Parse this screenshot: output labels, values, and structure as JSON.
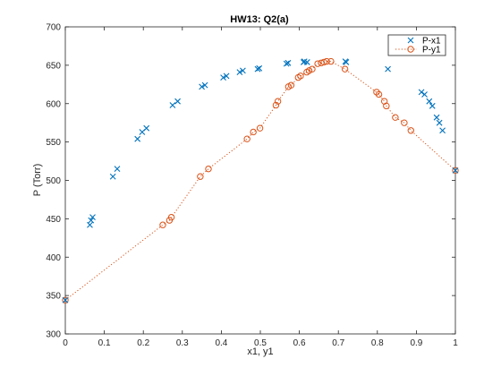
{
  "chart_data": {
    "type": "scatter",
    "title": "HW13: Q2(a)",
    "xlabel": "x1, y1",
    "ylabel": "P (Torr)",
    "xlim": [
      0,
      1
    ],
    "ylim": [
      300,
      700
    ],
    "xticks": [
      0,
      0.1,
      0.2,
      0.3,
      0.4,
      0.5,
      0.6,
      0.7,
      0.8,
      0.9,
      1
    ],
    "yticks": [
      300,
      350,
      400,
      450,
      500,
      550,
      600,
      650,
      700
    ],
    "legend_position": "top-right",
    "colors": {
      "x_series": "#0072BD",
      "y_series": "#D95319",
      "axis": "#262626"
    },
    "series": [
      {
        "name": "P-x1",
        "marker": "x",
        "line": "none",
        "points": [
          [
            0.0,
            344
          ],
          [
            0.063,
            442
          ],
          [
            0.066,
            448
          ],
          [
            0.07,
            452
          ],
          [
            0.122,
            505
          ],
          [
            0.133,
            515
          ],
          [
            0.185,
            554
          ],
          [
            0.197,
            563
          ],
          [
            0.208,
            568
          ],
          [
            0.275,
            598
          ],
          [
            0.288,
            603
          ],
          [
            0.35,
            622
          ],
          [
            0.358,
            624
          ],
          [
            0.405,
            634
          ],
          [
            0.413,
            636
          ],
          [
            0.447,
            641
          ],
          [
            0.455,
            643
          ],
          [
            0.493,
            645
          ],
          [
            0.497,
            646
          ],
          [
            0.567,
            652
          ],
          [
            0.571,
            653
          ],
          [
            0.611,
            654
          ],
          [
            0.613,
            655
          ],
          [
            0.62,
            654
          ],
          [
            0.718,
            655
          ],
          [
            0.72,
            654
          ],
          [
            0.827,
            645
          ],
          [
            0.913,
            615
          ],
          [
            0.921,
            612
          ],
          [
            0.933,
            603
          ],
          [
            0.941,
            597
          ],
          [
            0.952,
            582
          ],
          [
            0.959,
            575
          ],
          [
            0.967,
            565
          ],
          [
            1.0,
            513
          ]
        ]
      },
      {
        "name": "P-y1",
        "marker": "o",
        "line": "dotted",
        "points": [
          [
            0.0,
            344
          ],
          [
            0.25,
            442
          ],
          [
            0.267,
            448
          ],
          [
            0.272,
            452
          ],
          [
            0.346,
            505
          ],
          [
            0.367,
            515
          ],
          [
            0.466,
            554
          ],
          [
            0.482,
            563
          ],
          [
            0.499,
            568
          ],
          [
            0.54,
            598
          ],
          [
            0.545,
            603
          ],
          [
            0.572,
            622
          ],
          [
            0.579,
            624
          ],
          [
            0.597,
            634
          ],
          [
            0.603,
            636
          ],
          [
            0.619,
            641
          ],
          [
            0.625,
            643
          ],
          [
            0.633,
            645
          ],
          [
            0.647,
            652
          ],
          [
            0.656,
            653
          ],
          [
            0.663,
            654
          ],
          [
            0.67,
            655
          ],
          [
            0.681,
            655
          ],
          [
            0.717,
            645
          ],
          [
            0.798,
            615
          ],
          [
            0.804,
            612
          ],
          [
            0.818,
            603
          ],
          [
            0.823,
            597
          ],
          [
            0.846,
            582
          ],
          [
            0.869,
            575
          ],
          [
            0.886,
            565
          ],
          [
            1.0,
            513
          ]
        ]
      }
    ]
  }
}
